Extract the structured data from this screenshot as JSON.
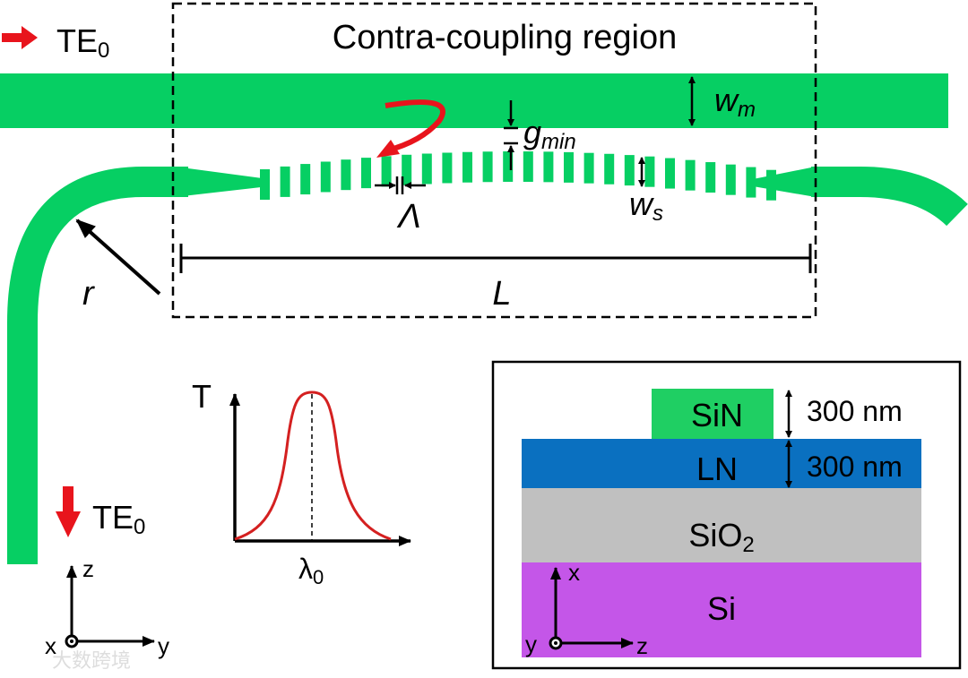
{
  "input_label": {
    "main": "TE",
    "sub": "0"
  },
  "output_label": {
    "main": "TE",
    "sub": "0"
  },
  "region_title": "Contra-coupling region",
  "labels": {
    "wm": {
      "main": "w",
      "sub": "m"
    },
    "gmin": {
      "main": "g",
      "sub": "min"
    },
    "ws": {
      "main": "w",
      "sub": "s"
    },
    "period": "Λ",
    "length": "L",
    "radius": "r"
  },
  "spectrum": {
    "y_axis": "T",
    "x_mark": {
      "main": "λ",
      "sub": "0"
    }
  },
  "axes_top_view": {
    "vertical": "z",
    "horizontal": "y",
    "out_of_plane": "x"
  },
  "cross_section": {
    "layers": [
      {
        "name": "SiN",
        "thickness": "300 nm",
        "color": "#1fcf63"
      },
      {
        "name": "LN",
        "thickness": "300 nm",
        "color": "#0a70c0"
      },
      {
        "name": "SiO",
        "sub": "2",
        "color": "#c0c0c0"
      },
      {
        "name": "Si",
        "color": "#c456e8"
      }
    ],
    "axes": {
      "vertical": "x",
      "horizontal": "z",
      "out_of_plane": "y"
    }
  },
  "colors": {
    "waveguide": "#06cf63",
    "arrow": "#e8141c",
    "curve": "#d42020"
  },
  "watermark": "大数跨境"
}
